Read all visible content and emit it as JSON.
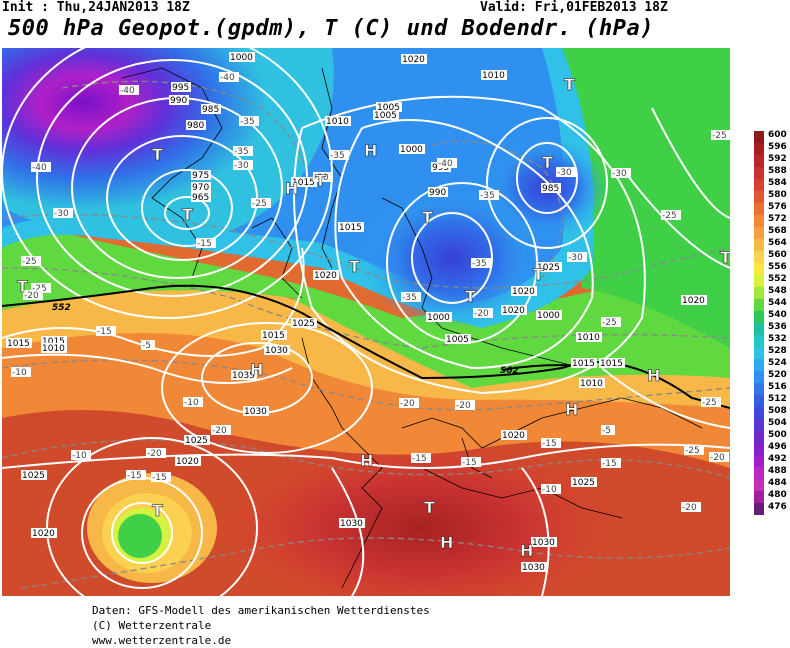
{
  "header": {
    "init": "Init : Thu,24JAN2013 18Z",
    "valid": "Valid: Fri,01FEB2013 18Z",
    "title": "500 hPa Geopot.(gpdm), T (C) und Bodendr. (hPa)"
  },
  "legend": {
    "levels": [
      "600",
      "596",
      "592",
      "588",
      "584",
      "580",
      "576",
      "572",
      "568",
      "564",
      "560",
      "556",
      "552",
      "548",
      "544",
      "540",
      "536",
      "532",
      "528",
      "524",
      "520",
      "516",
      "512",
      "508",
      "504",
      "500",
      "496",
      "492",
      "488",
      "484",
      "480",
      "476"
    ],
    "colors": [
      "#8b1a1a",
      "#a42020",
      "#b82828",
      "#c83232",
      "#d84030",
      "#e05830",
      "#e87030",
      "#f08838",
      "#f4a040",
      "#f8b848",
      "#fcd050",
      "#f8e840",
      "#d8f040",
      "#a0e840",
      "#60d840",
      "#30c858",
      "#20c0a0",
      "#20c8c8",
      "#30c0e8",
      "#30a8f0",
      "#3090f0",
      "#3078e8",
      "#3060e0",
      "#4048d8",
      "#5838d0",
      "#7028c8",
      "#8820c8",
      "#a020c8",
      "#b828c0",
      "#c030b8",
      "#a020a0",
      "#6a1a7a"
    ]
  },
  "map": {
    "pressure_labels": [
      "1000",
      "1020",
      "1010",
      "1005",
      "995",
      "990",
      "985",
      "980",
      "975",
      "970",
      "965",
      "1015",
      "1015",
      "1020",
      "1000",
      "1005",
      "1010",
      "1015",
      "1025",
      "1030",
      "1035",
      "1030",
      "1025",
      "1020",
      "1025",
      "1030",
      "1020",
      "1015",
      "1010",
      "1020",
      "1030",
      "1025",
      "1020",
      "1015",
      "1010",
      "985",
      "990",
      "995",
      "1000",
      "1005",
      "1010",
      "1015",
      "1020",
      "1030",
      "1025",
      "1020",
      "1015",
      "1000"
    ],
    "temp_labels": [
      "-40",
      "-40",
      "-40",
      "-35",
      "-35",
      "-30",
      "-25",
      "-25",
      "-20",
      "-15",
      "-15",
      "-10",
      "-10",
      "-5",
      "-35",
      "-30",
      "-30",
      "-35",
      "-35",
      "-40",
      "-35",
      "-30",
      "-30",
      "-25",
      "-25",
      "-25",
      "-20",
      "-20",
      "-20",
      "-15",
      "-15",
      "-15",
      "-20",
      "-20",
      "-15",
      "-15",
      "-10",
      "-20",
      "-25",
      "-25",
      "-20",
      "-15",
      "-10",
      "-5",
      "-30",
      "-25"
    ],
    "high_symbol": "H",
    "low_symbol": "T",
    "contour_552_label": "552",
    "contour_562_label": "562"
  },
  "credits": {
    "line1": "Daten: GFS-Modell des amerikanischen Wetterdienstes",
    "line2": "(C) Wetterzentrale",
    "line3": "www.wetterzentrale.de"
  }
}
